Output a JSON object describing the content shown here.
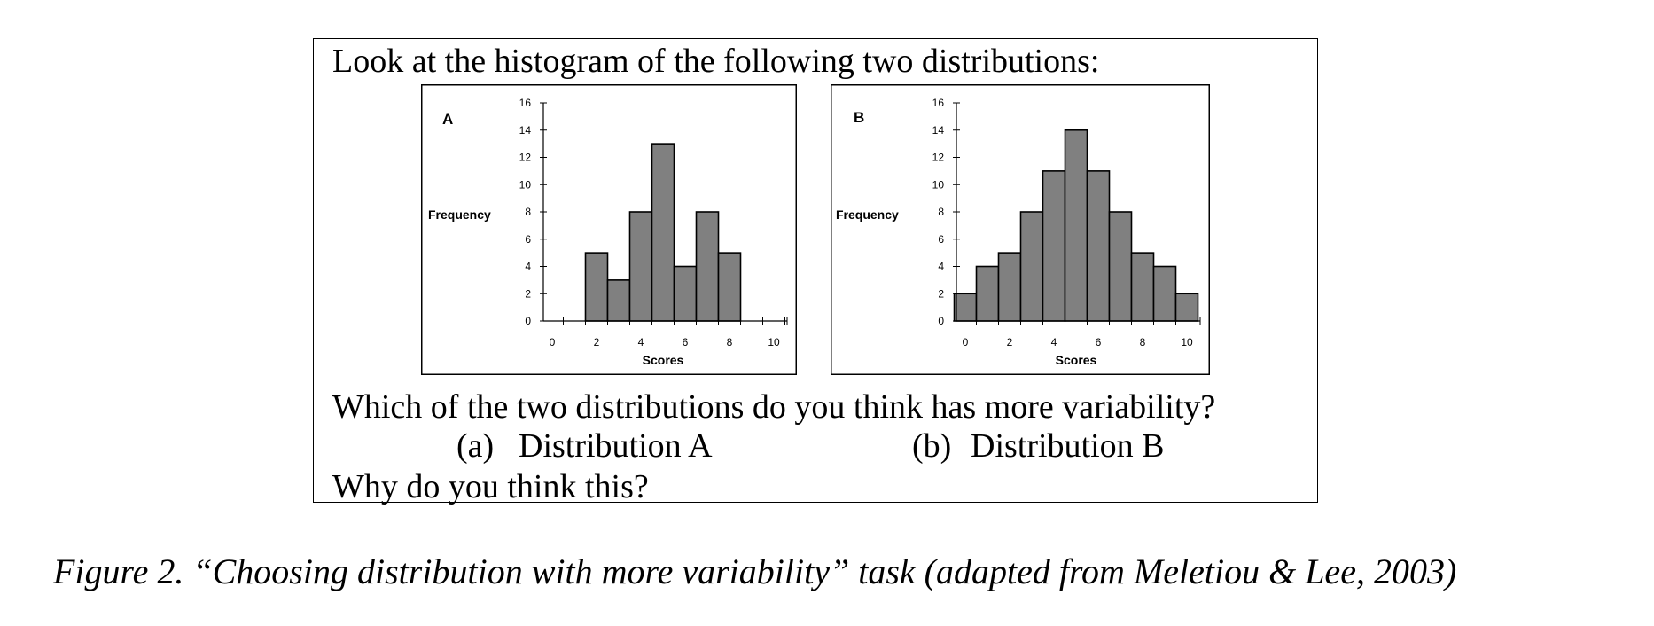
{
  "question": {
    "intro": "Look at the histogram of the following two distributions:",
    "prompt": "Which of the two distributions do you think has more variability?",
    "option_a": {
      "marker": "(a)",
      "label": "Distribution A"
    },
    "option_b": {
      "marker": "(b)",
      "label": "Distribution B"
    },
    "followup": "Why do you think this?"
  },
  "caption": "Figure 2. “Choosing distribution with more variability” task (adapted from Meletiou & Lee, 2003)",
  "chart_data": [
    {
      "type": "bar",
      "title": "A",
      "xlabel": "Scores",
      "ylabel": "Frequency",
      "xlim": [
        0,
        10
      ],
      "ylim": [
        0,
        16
      ],
      "xticks": [
        0,
        2,
        4,
        6,
        8,
        10
      ],
      "yticks": [
        0,
        2,
        4,
        6,
        8,
        10,
        12,
        14,
        16
      ],
      "bar_color": "#808080",
      "x": [
        2,
        3,
        4,
        5,
        6,
        7,
        8
      ],
      "values": [
        5,
        3,
        8,
        13,
        4,
        8,
        5
      ]
    },
    {
      "type": "bar",
      "title": "B",
      "xlabel": "Scores",
      "ylabel": "Frequency",
      "xlim": [
        0,
        10
      ],
      "ylim": [
        0,
        16
      ],
      "xticks": [
        0,
        2,
        4,
        6,
        8,
        10
      ],
      "yticks": [
        0,
        2,
        4,
        6,
        8,
        10,
        12,
        14,
        16
      ],
      "bar_color": "#808080",
      "x": [
        0,
        1,
        2,
        3,
        4,
        5,
        6,
        7,
        8,
        9,
        10
      ],
      "values": [
        2,
        4,
        5,
        8,
        11,
        14,
        11,
        8,
        5,
        4,
        2
      ]
    }
  ]
}
